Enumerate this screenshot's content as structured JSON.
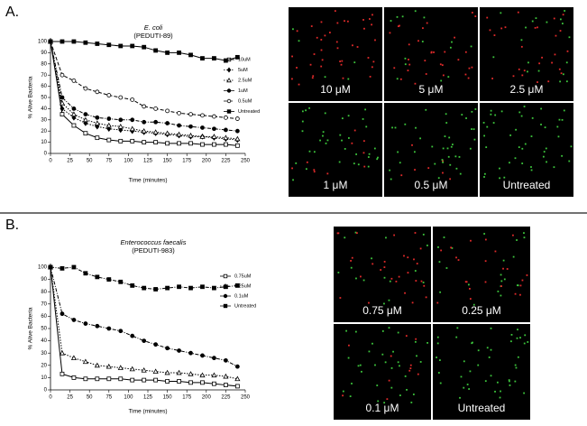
{
  "chart_data": [
    {
      "type": "line",
      "title": "E. coli",
      "subtitle": "(PEDUTI-89)",
      "xlabel": "Time (minutes)",
      "ylabel": "% Alive Bacteria",
      "x": [
        0,
        15,
        30,
        45,
        60,
        75,
        90,
        105,
        120,
        135,
        150,
        165,
        180,
        195,
        210,
        225,
        240
      ],
      "xlim": [
        0,
        250
      ],
      "xticks": [
        0,
        25,
        50,
        75,
        100,
        125,
        150,
        175,
        200,
        225,
        250
      ],
      "ylim": [
        0,
        100
      ],
      "yticks": [
        0,
        10,
        20,
        30,
        40,
        50,
        60,
        70,
        80,
        90,
        100
      ],
      "series": [
        {
          "name": "10uM",
          "color": "#000",
          "marker": "square-open",
          "dash": "solid",
          "values": [
            100,
            35,
            25,
            18,
            14,
            12,
            11,
            11,
            10,
            10,
            9,
            9,
            9,
            8,
            8,
            8,
            7
          ]
        },
        {
          "name": "5uM",
          "color": "#000",
          "marker": "diamond",
          "dash": "dotted",
          "values": [
            100,
            40,
            32,
            27,
            24,
            22,
            21,
            20,
            19,
            18,
            17,
            16,
            15,
            15,
            14,
            13,
            12
          ]
        },
        {
          "name": "2.5uM",
          "color": "#000",
          "marker": "triangle-open",
          "dash": "dotted",
          "values": [
            100,
            45,
            35,
            30,
            27,
            25,
            24,
            22,
            20,
            19,
            18,
            17,
            16,
            15,
            15,
            14,
            13
          ]
        },
        {
          "name": "1uM",
          "color": "#000",
          "marker": "circle",
          "dash": "dashdot",
          "values": [
            100,
            50,
            40,
            35,
            32,
            31,
            30,
            30,
            28,
            28,
            27,
            25,
            24,
            23,
            22,
            21,
            20
          ]
        },
        {
          "name": "0.5uM",
          "color": "#000",
          "marker": "circle-open",
          "dash": "dashed",
          "values": [
            100,
            70,
            65,
            58,
            55,
            52,
            50,
            48,
            42,
            40,
            38,
            36,
            35,
            34,
            33,
            32,
            31
          ]
        },
        {
          "name": "Untreated",
          "color": "#000",
          "marker": "square",
          "dash": "solid",
          "values": [
            100,
            100,
            100,
            99,
            98,
            97,
            96,
            96,
            95,
            92,
            90,
            90,
            88,
            85,
            85,
            83,
            86
          ]
        }
      ]
    },
    {
      "type": "line",
      "title": "Enterococcus faecalis",
      "subtitle": "(PEDUTI-983)",
      "xlabel": "Time (minutes)",
      "ylabel": "% Alive Bacteria",
      "x": [
        0,
        15,
        30,
        45,
        60,
        75,
        90,
        105,
        120,
        135,
        150,
        165,
        180,
        195,
        210,
        225,
        240
      ],
      "xlim": [
        0,
        250
      ],
      "xticks": [
        0,
        25,
        50,
        75,
        100,
        125,
        150,
        175,
        200,
        225,
        250
      ],
      "ylim": [
        0,
        100
      ],
      "yticks": [
        0,
        10,
        20,
        30,
        40,
        50,
        60,
        70,
        80,
        90,
        100
      ],
      "series": [
        {
          "name": "0.75uM",
          "color": "#000",
          "marker": "square-open",
          "dash": "solid",
          "values": [
            100,
            13,
            10,
            9,
            9,
            9,
            9,
            8,
            8,
            8,
            7,
            7,
            6,
            6,
            5,
            4,
            3
          ]
        },
        {
          "name": "0.25uM",
          "color": "#000",
          "marker": "triangle-open",
          "dash": "dotted",
          "values": [
            100,
            30,
            26,
            23,
            20,
            19,
            18,
            17,
            16,
            15,
            14,
            14,
            13,
            12,
            12,
            11,
            9
          ]
        },
        {
          "name": "0.1uM",
          "color": "#000",
          "marker": "circle",
          "dash": "dashdot",
          "values": [
            100,
            62,
            57,
            54,
            52,
            50,
            48,
            44,
            40,
            37,
            34,
            32,
            30,
            28,
            26,
            24,
            19
          ]
        },
        {
          "name": "Untreated",
          "color": "#000",
          "marker": "square",
          "dash": "dashdot",
          "values": [
            100,
            99,
            100,
            95,
            92,
            90,
            88,
            85,
            83,
            82,
            83,
            84,
            83,
            84,
            83,
            84,
            85
          ]
        }
      ]
    }
  ],
  "figure": {
    "panels": [
      {
        "letter": "A.",
        "images": [
          "10 μM",
          "5 μM",
          "2.5 μM",
          "1 μM",
          "0.5 μM",
          "Untreated"
        ]
      },
      {
        "letter": "B.",
        "images": [
          "0.75 μM",
          "0.25 μM",
          "0.1 μM",
          "Untreated"
        ]
      }
    ]
  }
}
